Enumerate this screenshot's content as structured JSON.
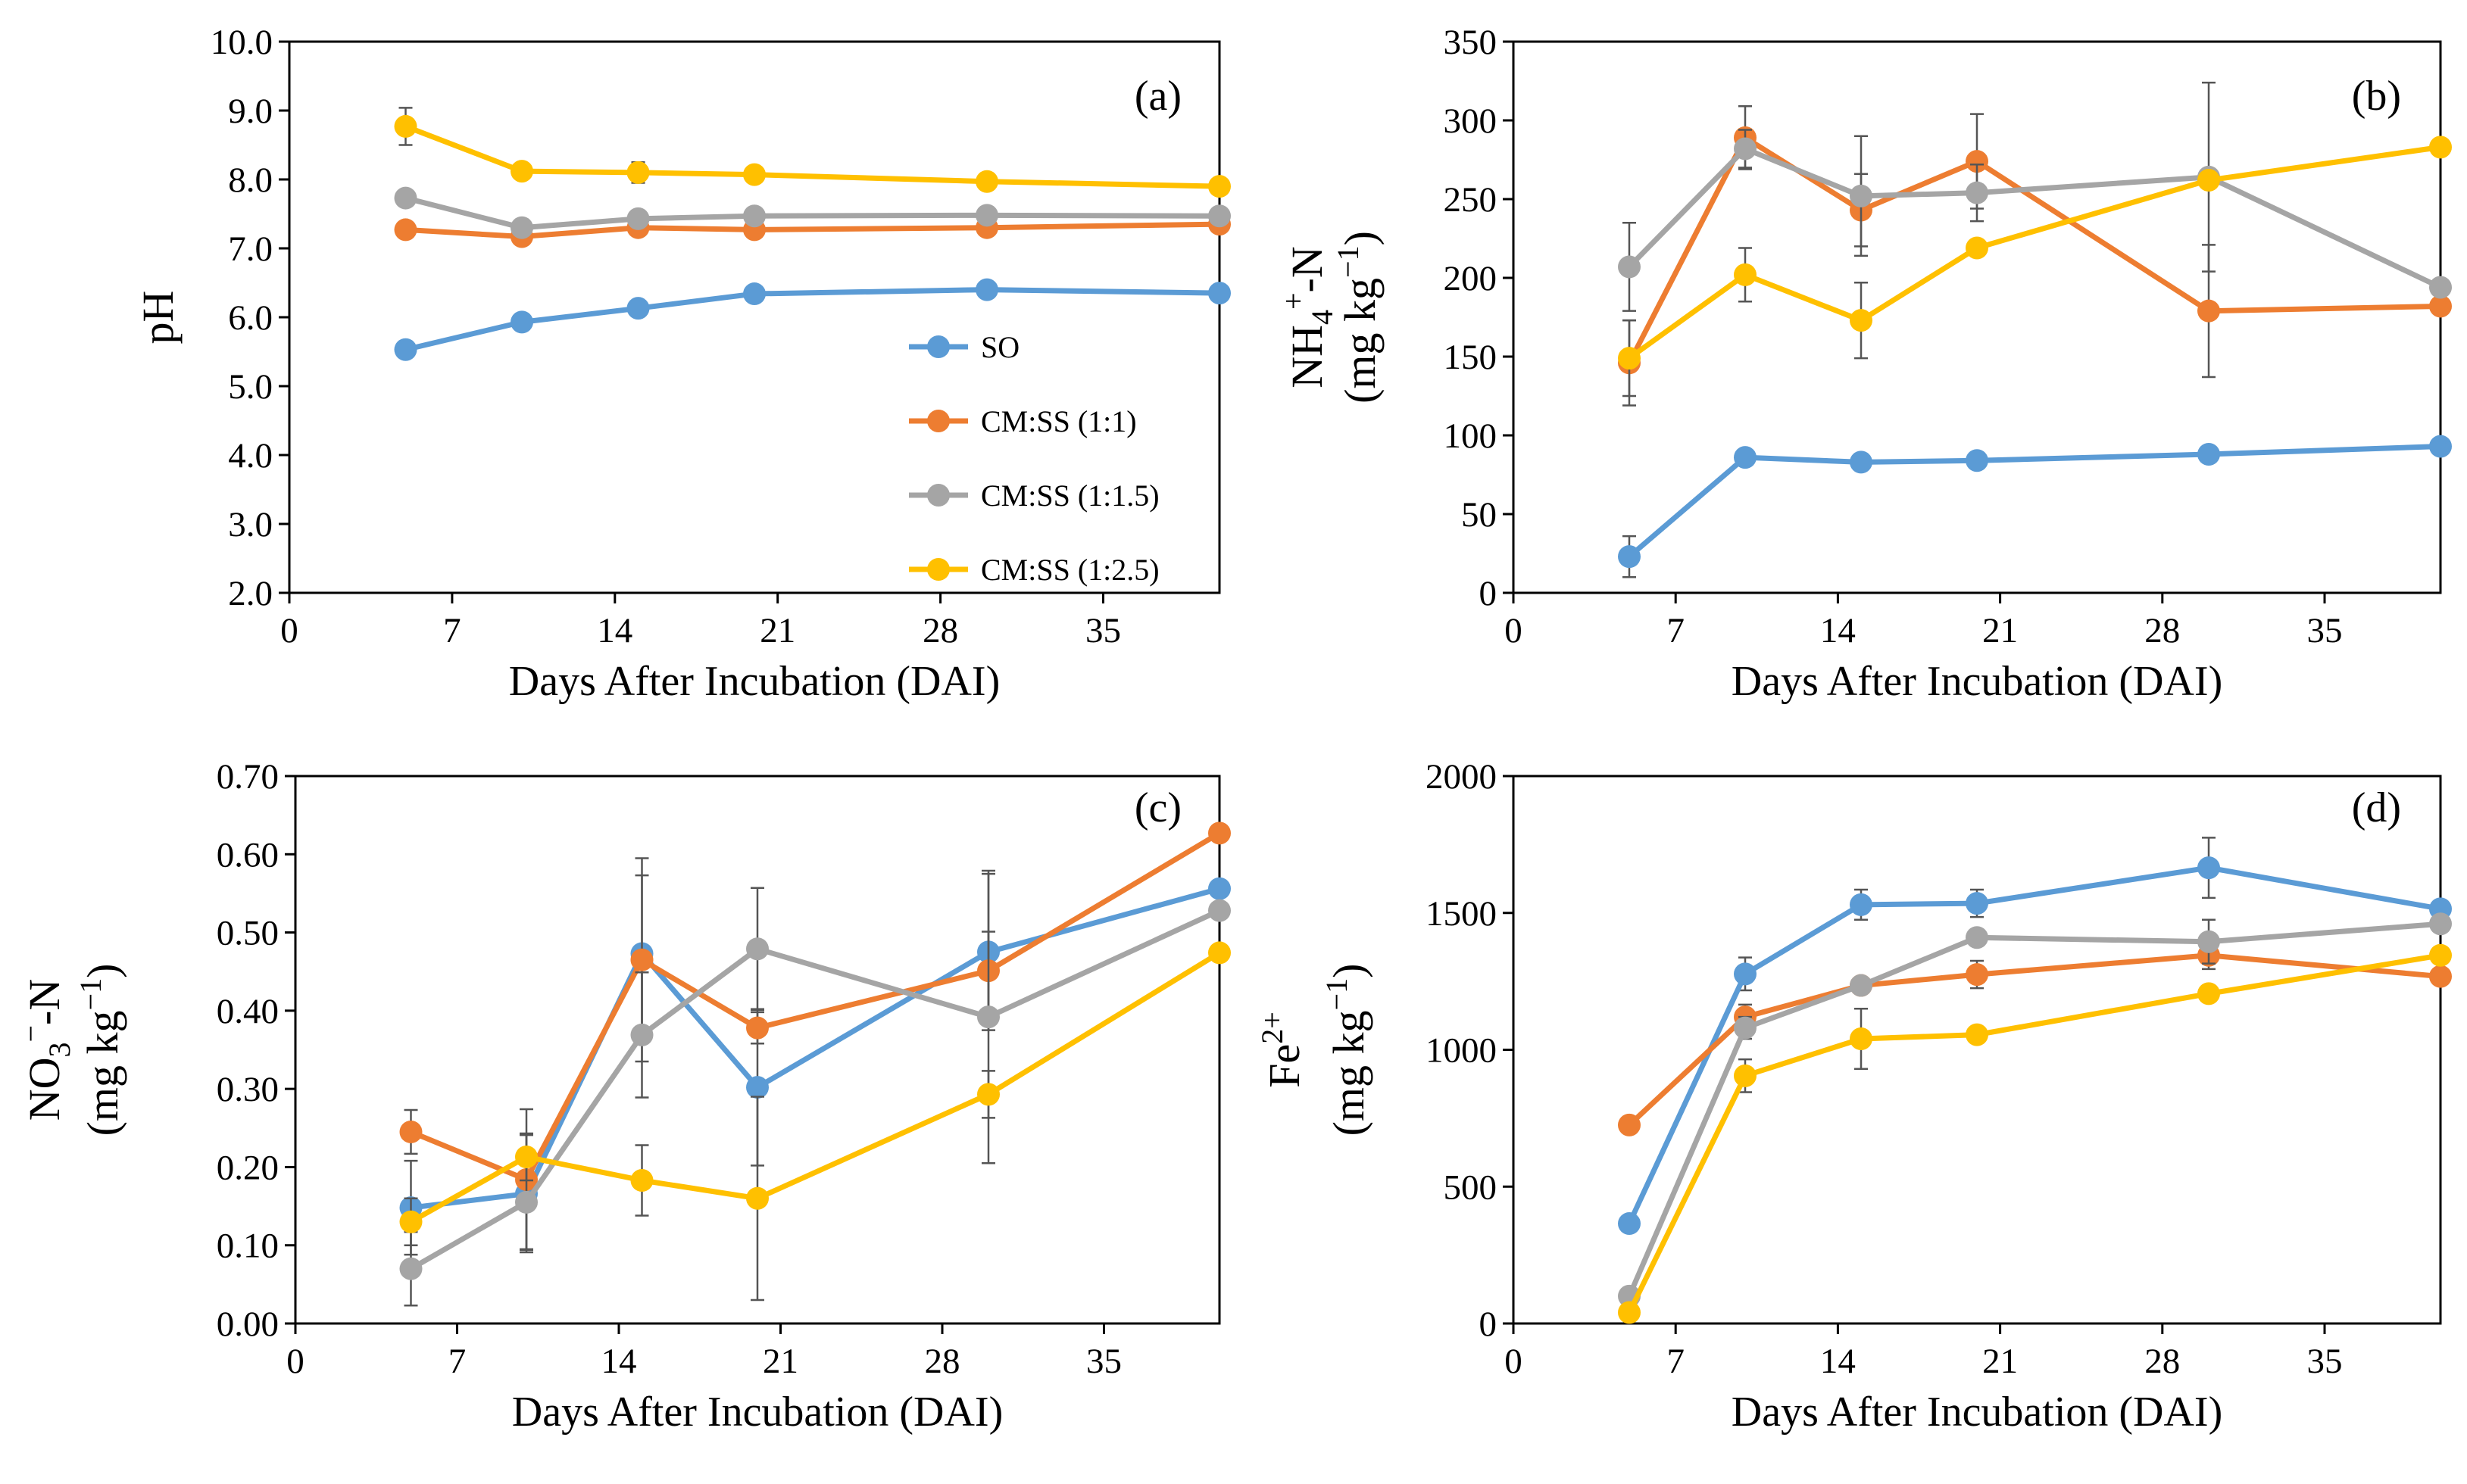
{
  "chart_data": [
    {
      "type": "line",
      "panel_label": "(a)",
      "title": "",
      "xlabel": "Days After Incubation (DAI)",
      "ylabel_line1": "pH",
      "ylabel_line2": "",
      "ylabel_plain": "pH",
      "xlim": [
        0,
        40
      ],
      "ylim": [
        2.0,
        10.0
      ],
      "xticks": [
        0,
        7,
        14,
        21,
        28,
        35
      ],
      "yticks": [
        2.0,
        3.0,
        4.0,
        5.0,
        6.0,
        7.0,
        8.0,
        9.0,
        10.0
      ],
      "ytick_labels": [
        "2.0",
        "3.0",
        "4.0",
        "5.0",
        "6.0",
        "7.0",
        "8.0",
        "9.0",
        "10.0"
      ],
      "x": [
        5,
        10,
        15,
        20,
        30,
        40
      ],
      "legend": "center-right",
      "series": [
        {
          "name": "SO",
          "color": "#5B9BD5",
          "values": [
            5.53,
            5.93,
            6.13,
            6.34,
            6.4,
            6.35
          ],
          "errors": [
            0,
            0,
            0,
            0,
            0,
            0
          ]
        },
        {
          "name": "CM:SS (1:1)",
          "color": "#ED7D31",
          "values": [
            7.27,
            7.17,
            7.3,
            7.27,
            7.3,
            7.35
          ],
          "errors": [
            0,
            0,
            0,
            0,
            0,
            0
          ]
        },
        {
          "name": "CM:SS (1:1.5)",
          "color": "#A5A5A5",
          "values": [
            7.73,
            7.3,
            7.43,
            7.47,
            7.48,
            7.47
          ],
          "errors": [
            0,
            0,
            0,
            0,
            0,
            0
          ]
        },
        {
          "name": "CM:SS (1:2.5)",
          "color": "#FFC000",
          "values": [
            8.77,
            8.12,
            8.1,
            8.07,
            7.97,
            7.9
          ],
          "errors": [
            0.27,
            0,
            0.15,
            0,
            0,
            0
          ]
        }
      ]
    },
    {
      "type": "line",
      "panel_label": "(b)",
      "title": "",
      "xlabel": "Days After Incubation (DAI)",
      "ylabel_line1": "NH4+-N",
      "ylabel_line2": "(mg kg−1)",
      "ylabel_parts": [
        "NH",
        "4",
        "+",
        "-N",
        "(mg kg",
        "−1",
        ")"
      ],
      "xlim": [
        0,
        40
      ],
      "ylim": [
        0,
        350
      ],
      "xticks": [
        0,
        7,
        14,
        21,
        28,
        35
      ],
      "yticks": [
        0,
        50,
        100,
        150,
        200,
        250,
        300,
        350
      ],
      "ytick_labels": [
        "0",
        "50",
        "100",
        "150",
        "200",
        "250",
        "300",
        "350"
      ],
      "x": [
        5,
        10,
        15,
        20,
        30,
        40
      ],
      "series": [
        {
          "name": "SO",
          "color": "#5B9BD5",
          "values": [
            23,
            86,
            83,
            84,
            88,
            93
          ],
          "errors": [
            13,
            0,
            0,
            0,
            0,
            0
          ]
        },
        {
          "name": "CM:SS (1:1)",
          "color": "#ED7D31",
          "values": [
            146,
            289,
            243,
            274,
            179,
            182
          ],
          "errors": [
            27,
            20,
            23,
            30,
            42,
            0
          ]
        },
        {
          "name": "CM:SS (1:1.5)",
          "color": "#A5A5A5",
          "values": [
            207,
            282,
            252,
            254,
            264,
            194
          ],
          "errors": [
            28,
            12,
            38,
            18,
            60,
            0
          ]
        },
        {
          "name": "CM:SS (1:2.5)",
          "color": "#FFC000",
          "values": [
            149,
            202,
            173,
            219,
            262,
            283
          ],
          "errors": [
            24,
            17,
            24,
            0,
            0,
            0
          ]
        }
      ]
    },
    {
      "type": "line",
      "panel_label": "(c)",
      "title": "",
      "xlabel": "Days After Incubation (DAI)",
      "ylabel_line1": "NO3−-N",
      "ylabel_line2": "(mg kg−1)",
      "ylabel_parts": [
        "NO",
        "3",
        "−",
        "-N",
        "(mg kg",
        "−1",
        ")"
      ],
      "xlim": [
        0,
        40
      ],
      "ylim": [
        0.0,
        0.7
      ],
      "xticks": [
        0,
        7,
        14,
        21,
        28,
        35
      ],
      "yticks": [
        0.0,
        0.1,
        0.2,
        0.3,
        0.4,
        0.5,
        0.6,
        0.7
      ],
      "ytick_labels": [
        "0.00",
        "0.10",
        "0.20",
        "0.30",
        "0.40",
        "0.50",
        "0.60",
        "0.70"
      ],
      "x": [
        5,
        10,
        15,
        20,
        30,
        40
      ],
      "series": [
        {
          "name": "SO",
          "color": "#5B9BD5",
          "values": [
            0.148,
            0.166,
            0.473,
            0.302,
            0.475,
            0.556
          ],
          "errors": [
            0.06,
            0.075,
            0.1,
            0.1,
            0.1,
            0
          ]
        },
        {
          "name": "CM:SS (1:1)",
          "color": "#ED7D31",
          "values": [
            0.245,
            0.184,
            0.465,
            0.378,
            0.451,
            0.627
          ],
          "errors": [
            0.028,
            0.09,
            0.13,
            0.02,
            0.05,
            0
          ]
        },
        {
          "name": "CM:SS (1:1.5)",
          "color": "#A5A5A5",
          "values": [
            0.07,
            0.155,
            0.369,
            0.479,
            0.392,
            0.528
          ],
          "errors": [
            0.047,
            0.06,
            0.08,
            0.078,
            0.187,
            0
          ]
        },
        {
          "name": "CM:SS (1:2.5)",
          "color": "#FFC000",
          "values": [
            0.13,
            0.213,
            0.183,
            0.16,
            0.293,
            0.474
          ],
          "errors": [
            0.03,
            0.03,
            0.045,
            0.13,
            0.03,
            0
          ]
        }
      ]
    },
    {
      "type": "line",
      "panel_label": "(d)",
      "title": "",
      "xlabel": "Days After Incubation (DAI)",
      "ylabel_line1": "Fe2+",
      "ylabel_line2": "(mg kg−1)",
      "ylabel_parts": [
        "Fe",
        "",
        "2+",
        "",
        "(mg kg",
        "−1",
        ")"
      ],
      "xlim": [
        0,
        40
      ],
      "ylim": [
        0,
        2000
      ],
      "xticks": [
        0,
        7,
        14,
        21,
        28,
        35
      ],
      "yticks": [
        0,
        500,
        1000,
        1500,
        2000
      ],
      "ytick_labels": [
        "0",
        "500",
        "1000",
        "1500",
        "2000"
      ],
      "x": [
        5,
        10,
        15,
        20,
        30,
        40
      ],
      "series": [
        {
          "name": "SO",
          "color": "#5B9BD5",
          "values": [
            365,
            1277,
            1530,
            1535,
            1665,
            1515
          ],
          "errors": [
            0,
            60,
            55,
            50,
            110,
            0
          ]
        },
        {
          "name": "CM:SS (1:1)",
          "color": "#ED7D31",
          "values": [
            725,
            1120,
            1235,
            1275,
            1345,
            1268
          ],
          "errors": [
            0,
            45,
            0,
            50,
            50,
            0
          ]
        },
        {
          "name": "CM:SS (1:1.5)",
          "color": "#A5A5A5",
          "values": [
            100,
            1080,
            1235,
            1410,
            1395,
            1460
          ],
          "errors": [
            0,
            40,
            0,
            0,
            80,
            0
          ]
        },
        {
          "name": "CM:SS (1:2.5)",
          "color": "#FFC000",
          "values": [
            40,
            905,
            1040,
            1055,
            1205,
            1345
          ],
          "errors": [
            0,
            60,
            110,
            0,
            0,
            0
          ]
        }
      ]
    }
  ]
}
